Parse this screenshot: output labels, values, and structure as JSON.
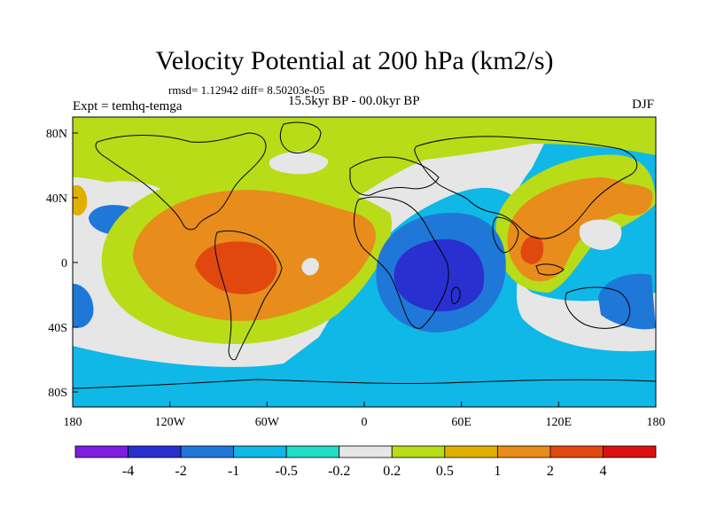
{
  "title": "Velocity Potential at 200 hPa (km2/s)",
  "stats": "rmsd= 1.12942 diff= 8.50203e-05",
  "period": "15.5kyr BP - 00.0kyr BP",
  "experiment": "Expt = temhq-temga",
  "season": "DJF",
  "axes": {
    "lat_ticks": [
      "80N",
      "40N",
      "0",
      "40S",
      "80S"
    ],
    "lon_ticks": [
      "180",
      "120W",
      "60W",
      "0",
      "60E",
      "120E",
      "180"
    ]
  },
  "colorbar": {
    "labels": [
      "-4",
      "-2",
      "-1",
      "-0.5",
      "-0.2",
      "0.2",
      "0.5",
      "1",
      "2",
      "4"
    ],
    "colors": [
      "#7c1fe0",
      "#2a2fd0",
      "#1f78d8",
      "#0fb8e6",
      "#22dcc8",
      "#e6e6e6",
      "#b8dc18",
      "#e0b000",
      "#e88c1c",
      "#e04810",
      "#dc1010"
    ]
  },
  "field_colors": {
    "neg_strong": "#2a2fd0",
    "neg_mid": "#1f78d8",
    "neg_light": "#0fb8e6",
    "neg_weak": "#22dcc8",
    "neutral": "#e6e6e6",
    "pos_weak": "#b8dc18",
    "pos_light": "#e0b000",
    "pos_mid": "#e88c1c",
    "pos_strong": "#e04810"
  }
}
